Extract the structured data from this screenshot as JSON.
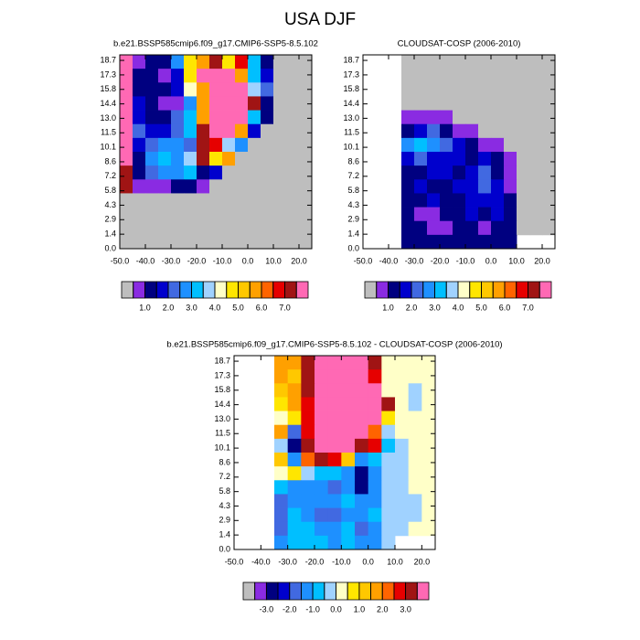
{
  "title": "USA DJF",
  "chart_data": [
    {
      "type": "heatmap",
      "title": "b.e21.BSSP585cmip6.f09_g17.CMIP6-SSP5-8.5.102",
      "xlim": [
        -50,
        25
      ],
      "ylim": [
        0,
        19.25
      ],
      "xticks": [
        {
          "value": -50,
          "label": "-50.0"
        },
        {
          "value": -40,
          "label": "-40.0"
        },
        {
          "value": -30,
          "label": "-30.0"
        },
        {
          "value": -20,
          "label": "-20.0"
        },
        {
          "value": -10,
          "label": "-10.0"
        },
        {
          "value": 0,
          "label": "0.0"
        },
        {
          "value": 10,
          "label": "10.0"
        },
        {
          "value": 20,
          "label": "20.0"
        }
      ],
      "yticks": [
        {
          "value": 0,
          "label": "0.0"
        },
        {
          "value": 1.44,
          "label": "1.4"
        },
        {
          "value": 2.88,
          "label": "2.9"
        },
        {
          "value": 4.32,
          "label": "4.3"
        },
        {
          "value": 5.75,
          "label": "5.8"
        },
        {
          "value": 7.19,
          "label": "7.2"
        },
        {
          "value": 8.63,
          "label": "8.6"
        },
        {
          "value": 10.07,
          "label": "10.1"
        },
        {
          "value": 11.51,
          "label": "11.5"
        },
        {
          "value": 12.95,
          "label": "13.0"
        },
        {
          "value": 14.38,
          "label": "14.4"
        },
        {
          "value": 15.82,
          "label": "15.8"
        },
        {
          "value": 17.26,
          "label": "17.3"
        },
        {
          "value": 18.7,
          "label": "18.7"
        }
      ],
      "z": [
        [
          7.8,
          0.8,
          1.3,
          1.3,
          2.5,
          4.8,
          5.7,
          7.2,
          4.8,
          6.5,
          3.3,
          1.3,
          0,
          0,
          0
        ],
        [
          7.8,
          1.3,
          1.3,
          0.8,
          1.8,
          4.8,
          8,
          8,
          8,
          5.7,
          3.3,
          1.8,
          0,
          0,
          0
        ],
        [
          7.8,
          1.3,
          1.3,
          1.3,
          1.8,
          4.3,
          5.7,
          8,
          8,
          8,
          3.8,
          2.3,
          0,
          0,
          0
        ],
        [
          7.8,
          1.8,
          1.3,
          0.8,
          0.8,
          2.8,
          5.7,
          8,
          8,
          8,
          7.2,
          1.3,
          0,
          0,
          0
        ],
        [
          7.8,
          1.8,
          1.3,
          1.3,
          2.3,
          3.3,
          5.7,
          8,
          8,
          8,
          3.3,
          1.3,
          0,
          0,
          0
        ],
        [
          7.8,
          2.3,
          1.8,
          1.8,
          2.3,
          3.3,
          7.2,
          8,
          8,
          5.7,
          1.8,
          0,
          0,
          0,
          0
        ],
        [
          7.8,
          1.8,
          2.3,
          2.8,
          2.8,
          2.3,
          7.2,
          6.5,
          3.8,
          2.8,
          0,
          0,
          0,
          0,
          0
        ],
        [
          7.8,
          1.3,
          2.8,
          3.3,
          2.8,
          3.8,
          7.2,
          4.8,
          5.7,
          0,
          0,
          0,
          0,
          0,
          0
        ],
        [
          7.2,
          1.3,
          2.3,
          2.8,
          2.8,
          3.3,
          1.3,
          1.8,
          0,
          0,
          0,
          0,
          0,
          0,
          0
        ],
        [
          7.2,
          0.8,
          0.8,
          0.8,
          1.3,
          1.3,
          0.8,
          0,
          0,
          0,
          0,
          0,
          0,
          0,
          0
        ],
        [
          0,
          0,
          0,
          0,
          0,
          0,
          0,
          0,
          0,
          0,
          0,
          0,
          0,
          0,
          0
        ],
        [
          0,
          0,
          0,
          0,
          0,
          0,
          0,
          0,
          0,
          0,
          0,
          0,
          0,
          0,
          0
        ],
        [
          0,
          0,
          0,
          0,
          0,
          0,
          0,
          0,
          0,
          0,
          0,
          0,
          0,
          0,
          0
        ],
        [
          0,
          0,
          0,
          0,
          0,
          0,
          0,
          0,
          0,
          0,
          0,
          0,
          0,
          0,
          0
        ]
      ],
      "colorbar": {
        "levels": [
          0.5,
          1,
          1.5,
          2,
          2.5,
          3,
          3.5,
          4,
          4.5,
          5,
          5.5,
          6,
          6.5,
          7,
          7.5
        ],
        "colors": [
          "#bebebe",
          "#8a2be2",
          "#000080",
          "#0000cd",
          "#4169e1",
          "#1e90ff",
          "#00bfff",
          "#a0d2ff",
          "#ffffc8",
          "#ffe600",
          "#ffc800",
          "#ffa000",
          "#ff6400",
          "#e60000",
          "#a01414",
          "#ff69b4"
        ],
        "ticks": [
          {
            "value": 1,
            "label": "1.0"
          },
          {
            "value": 2,
            "label": "2.0"
          },
          {
            "value": 3,
            "label": "3.0"
          },
          {
            "value": 4,
            "label": "4.0"
          },
          {
            "value": 5,
            "label": "5.0"
          },
          {
            "value": 6,
            "label": "6.0"
          },
          {
            "value": 7,
            "label": "7.0"
          }
        ]
      }
    },
    {
      "type": "heatmap",
      "title": "CLOUDSAT-COSP (2006-2010)",
      "xlim": [
        -50,
        25
      ],
      "ylim": [
        0,
        19.25
      ],
      "xticks": [
        {
          "value": -50,
          "label": "-50.0"
        },
        {
          "value": -40,
          "label": "-40.0"
        },
        {
          "value": -30,
          "label": "-30.0"
        },
        {
          "value": -20,
          "label": "-20.0"
        },
        {
          "value": -10,
          "label": "-10.0"
        },
        {
          "value": 0,
          "label": "0.0"
        },
        {
          "value": 10,
          "label": "10.0"
        },
        {
          "value": 20,
          "label": "20.0"
        }
      ],
      "yticks": [
        {
          "value": 0,
          "label": "0.0"
        },
        {
          "value": 1.44,
          "label": "1.4"
        },
        {
          "value": 2.88,
          "label": "2.9"
        },
        {
          "value": 4.32,
          "label": "4.3"
        },
        {
          "value": 5.75,
          "label": "5.8"
        },
        {
          "value": 7.19,
          "label": "7.2"
        },
        {
          "value": 8.63,
          "label": "8.6"
        },
        {
          "value": 10.07,
          "label": "10.1"
        },
        {
          "value": 11.51,
          "label": "11.5"
        },
        {
          "value": 12.95,
          "label": "13.0"
        },
        {
          "value": 14.38,
          "label": "14.4"
        },
        {
          "value": 15.82,
          "label": "15.8"
        },
        {
          "value": 17.26,
          "label": "17.3"
        },
        {
          "value": 18.7,
          "label": "18.7"
        }
      ],
      "z": [
        [
          null,
          null,
          null,
          0,
          0,
          0,
          0,
          0,
          0,
          0,
          0,
          0,
          0,
          0,
          0
        ],
        [
          null,
          null,
          null,
          0,
          0,
          0,
          0,
          0,
          0,
          0,
          0,
          0,
          0,
          0,
          0
        ],
        [
          null,
          null,
          null,
          0,
          0,
          0,
          0,
          0,
          0,
          0,
          0,
          0,
          0,
          0,
          0
        ],
        [
          null,
          null,
          null,
          0,
          0,
          0,
          0,
          0,
          0,
          0,
          0,
          0,
          0,
          0,
          0
        ],
        [
          null,
          null,
          null,
          0.8,
          0.8,
          0.8,
          0.8,
          0,
          0,
          0,
          0,
          0,
          0,
          0,
          0
        ],
        [
          null,
          null,
          null,
          1.3,
          1.8,
          2.3,
          1.3,
          0.8,
          0.8,
          0,
          0,
          0,
          0,
          0,
          0
        ],
        [
          null,
          null,
          null,
          2.8,
          3.3,
          2.8,
          2.3,
          1.8,
          1.3,
          0.8,
          0.8,
          0,
          0,
          0,
          0
        ],
        [
          null,
          null,
          null,
          1.8,
          2.3,
          1.8,
          1.8,
          1.8,
          1.3,
          1.8,
          1.3,
          0.8,
          0,
          0,
          0
        ],
        [
          null,
          null,
          null,
          1.3,
          1.3,
          1.8,
          1.8,
          1.3,
          1.8,
          2.3,
          1.3,
          0.8,
          0,
          0,
          0
        ],
        [
          null,
          null,
          null,
          1.3,
          1.8,
          1.3,
          1.3,
          1.8,
          1.8,
          2.3,
          1.8,
          0.8,
          0,
          0,
          0
        ],
        [
          null,
          null,
          null,
          1.3,
          1.3,
          1.8,
          1.3,
          1.3,
          1.8,
          1.8,
          1.8,
          1.3,
          0,
          0,
          0
        ],
        [
          null,
          null,
          null,
          1.3,
          0.8,
          0.8,
          1.3,
          1.3,
          1.8,
          1.3,
          1.8,
          1.3,
          0,
          0,
          0
        ],
        [
          null,
          null,
          null,
          1.3,
          1.3,
          0.8,
          0.8,
          1.3,
          1.3,
          0.8,
          1.3,
          1.3,
          0,
          0,
          0
        ],
        [
          null,
          null,
          null,
          1.3,
          1.3,
          1.3,
          1.3,
          1.3,
          1.3,
          1.3,
          1.3,
          1.3,
          null,
          null,
          null
        ]
      ],
      "colorbar": {
        "levels": [
          0.5,
          1,
          1.5,
          2,
          2.5,
          3,
          3.5,
          4,
          4.5,
          5,
          5.5,
          6,
          6.5,
          7,
          7.5
        ],
        "colors": [
          "#bebebe",
          "#8a2be2",
          "#000080",
          "#0000cd",
          "#4169e1",
          "#1e90ff",
          "#00bfff",
          "#a0d2ff",
          "#ffffc8",
          "#ffe600",
          "#ffc800",
          "#ffa000",
          "#ff6400",
          "#e60000",
          "#a01414",
          "#ff69b4"
        ],
        "ticks": [
          {
            "value": 1,
            "label": "1.0"
          },
          {
            "value": 2,
            "label": "2.0"
          },
          {
            "value": 3,
            "label": "3.0"
          },
          {
            "value": 4,
            "label": "4.0"
          },
          {
            "value": 5,
            "label": "5.0"
          },
          {
            "value": 6,
            "label": "6.0"
          },
          {
            "value": 7,
            "label": "7.0"
          }
        ]
      }
    },
    {
      "type": "heatmap",
      "title": "b.e21.BSSP585cmip6.f09_g17.CMIP6-SSP5-8.5.102 - CLOUDSAT-COSP (2006-2010)",
      "xlim": [
        -50,
        25
      ],
      "ylim": [
        0,
        19.25
      ],
      "xticks": [
        {
          "value": -50,
          "label": "-50.0"
        },
        {
          "value": -40,
          "label": "-40.0"
        },
        {
          "value": -30,
          "label": "-30.0"
        },
        {
          "value": -20,
          "label": "-20.0"
        },
        {
          "value": -10,
          "label": "-10.0"
        },
        {
          "value": 0,
          "label": "0.0"
        },
        {
          "value": 10,
          "label": "10.0"
        },
        {
          "value": 20,
          "label": "20.0"
        }
      ],
      "yticks": [
        {
          "value": 0,
          "label": "0.0"
        },
        {
          "value": 1.44,
          "label": "1.4"
        },
        {
          "value": 2.88,
          "label": "2.9"
        },
        {
          "value": 4.32,
          "label": "4.3"
        },
        {
          "value": 5.75,
          "label": "5.8"
        },
        {
          "value": 7.19,
          "label": "7.2"
        },
        {
          "value": 8.63,
          "label": "8.6"
        },
        {
          "value": 10.07,
          "label": "10.1"
        },
        {
          "value": 11.51,
          "label": "11.5"
        },
        {
          "value": 12.95,
          "label": "13.0"
        },
        {
          "value": 14.38,
          "label": "14.4"
        },
        {
          "value": 15.82,
          "label": "15.8"
        },
        {
          "value": 17.26,
          "label": "17.3"
        },
        {
          "value": 18.7,
          "label": "18.7"
        }
      ],
      "z": [
        [
          null,
          null,
          null,
          1.8,
          1.8,
          3.2,
          5,
          5,
          5,
          5,
          3.2,
          0.2,
          0.2,
          0.2,
          0.2
        ],
        [
          null,
          null,
          null,
          1.8,
          1.2,
          3.2,
          5,
          5,
          5,
          5,
          2.7,
          0.2,
          0.2,
          0.2,
          0.2
        ],
        [
          null,
          null,
          null,
          1.2,
          1.8,
          3.2,
          5,
          5,
          5,
          5,
          5,
          0.2,
          0.2,
          -0.2,
          0.2
        ],
        [
          null,
          null,
          null,
          0.7,
          1.8,
          2.7,
          5,
          5,
          5,
          5,
          5,
          3.2,
          0.2,
          -0.2,
          0.2
        ],
        [
          null,
          null,
          null,
          0.2,
          0.7,
          2.7,
          5,
          5,
          5,
          5,
          5,
          0.7,
          0.2,
          0.2,
          0.2
        ],
        [
          null,
          null,
          null,
          1.8,
          -1.8,
          2.7,
          5,
          5,
          5,
          5,
          2.2,
          -0.2,
          0.2,
          0.2,
          0.2
        ],
        [
          null,
          null,
          null,
          -0.2,
          -2.7,
          3.2,
          5,
          5,
          5,
          3.2,
          2.7,
          -0.7,
          -0.2,
          0.2,
          0.2
        ],
        [
          null,
          null,
          null,
          1.2,
          -1.2,
          2.2,
          3.2,
          2.7,
          1.2,
          -1.2,
          -0.7,
          -0.2,
          -0.2,
          0.2,
          0.2
        ],
        [
          null,
          null,
          null,
          0.2,
          0.7,
          -0.2,
          -0.7,
          -0.7,
          -1.2,
          -2.7,
          -1.2,
          -0.2,
          -0.2,
          0.2,
          0.2
        ],
        [
          null,
          null,
          null,
          -0.7,
          -1.2,
          -1.2,
          -1.2,
          -1.7,
          -1.2,
          -2.7,
          -1.2,
          -0.2,
          -0.2,
          0.2,
          0.2
        ],
        [
          null,
          null,
          null,
          -1.7,
          -1.2,
          -1.2,
          -1.2,
          -1.2,
          -0.7,
          -1.2,
          -1.2,
          -0.2,
          -0.2,
          -0.2,
          0.2
        ],
        [
          null,
          null,
          null,
          -1.7,
          -0.7,
          -1.2,
          -1.7,
          -1.7,
          -1.2,
          -1.2,
          -0.7,
          -0.2,
          -0.2,
          -0.2,
          0.2
        ],
        [
          null,
          null,
          null,
          -1.7,
          -0.7,
          -0.7,
          -1.2,
          -1.2,
          -0.7,
          -1.7,
          -1.2,
          -0.2,
          -0.2,
          0.2,
          0.2
        ],
        [
          null,
          null,
          null,
          -1.2,
          -0.7,
          -0.7,
          -0.7,
          -1.2,
          -0.7,
          -1.2,
          -1.2,
          -0.2,
          null,
          null,
          null
        ]
      ],
      "colorbar": {
        "levels": [
          -3.5,
          -3,
          -2.5,
          -2,
          -1.5,
          -1,
          -0.5,
          0,
          0.5,
          1,
          1.5,
          2,
          2.5,
          3,
          3.5
        ],
        "colors": [
          "#bebebe",
          "#8a2be2",
          "#000080",
          "#0000cd",
          "#4169e1",
          "#1e90ff",
          "#00bfff",
          "#a0d2ff",
          "#ffffc8",
          "#ffe600",
          "#ffc800",
          "#ffa000",
          "#ff6400",
          "#e60000",
          "#a01414",
          "#ff69b4"
        ],
        "ticks": [
          {
            "value": -3,
            "label": "-3.0"
          },
          {
            "value": -2,
            "label": "-2.0"
          },
          {
            "value": -1,
            "label": "-1.0"
          },
          {
            "value": 0,
            "label": "0.0"
          },
          {
            "value": 1,
            "label": "1.0"
          },
          {
            "value": 2,
            "label": "2.0"
          },
          {
            "value": 3,
            "label": "3.0"
          }
        ]
      }
    }
  ]
}
